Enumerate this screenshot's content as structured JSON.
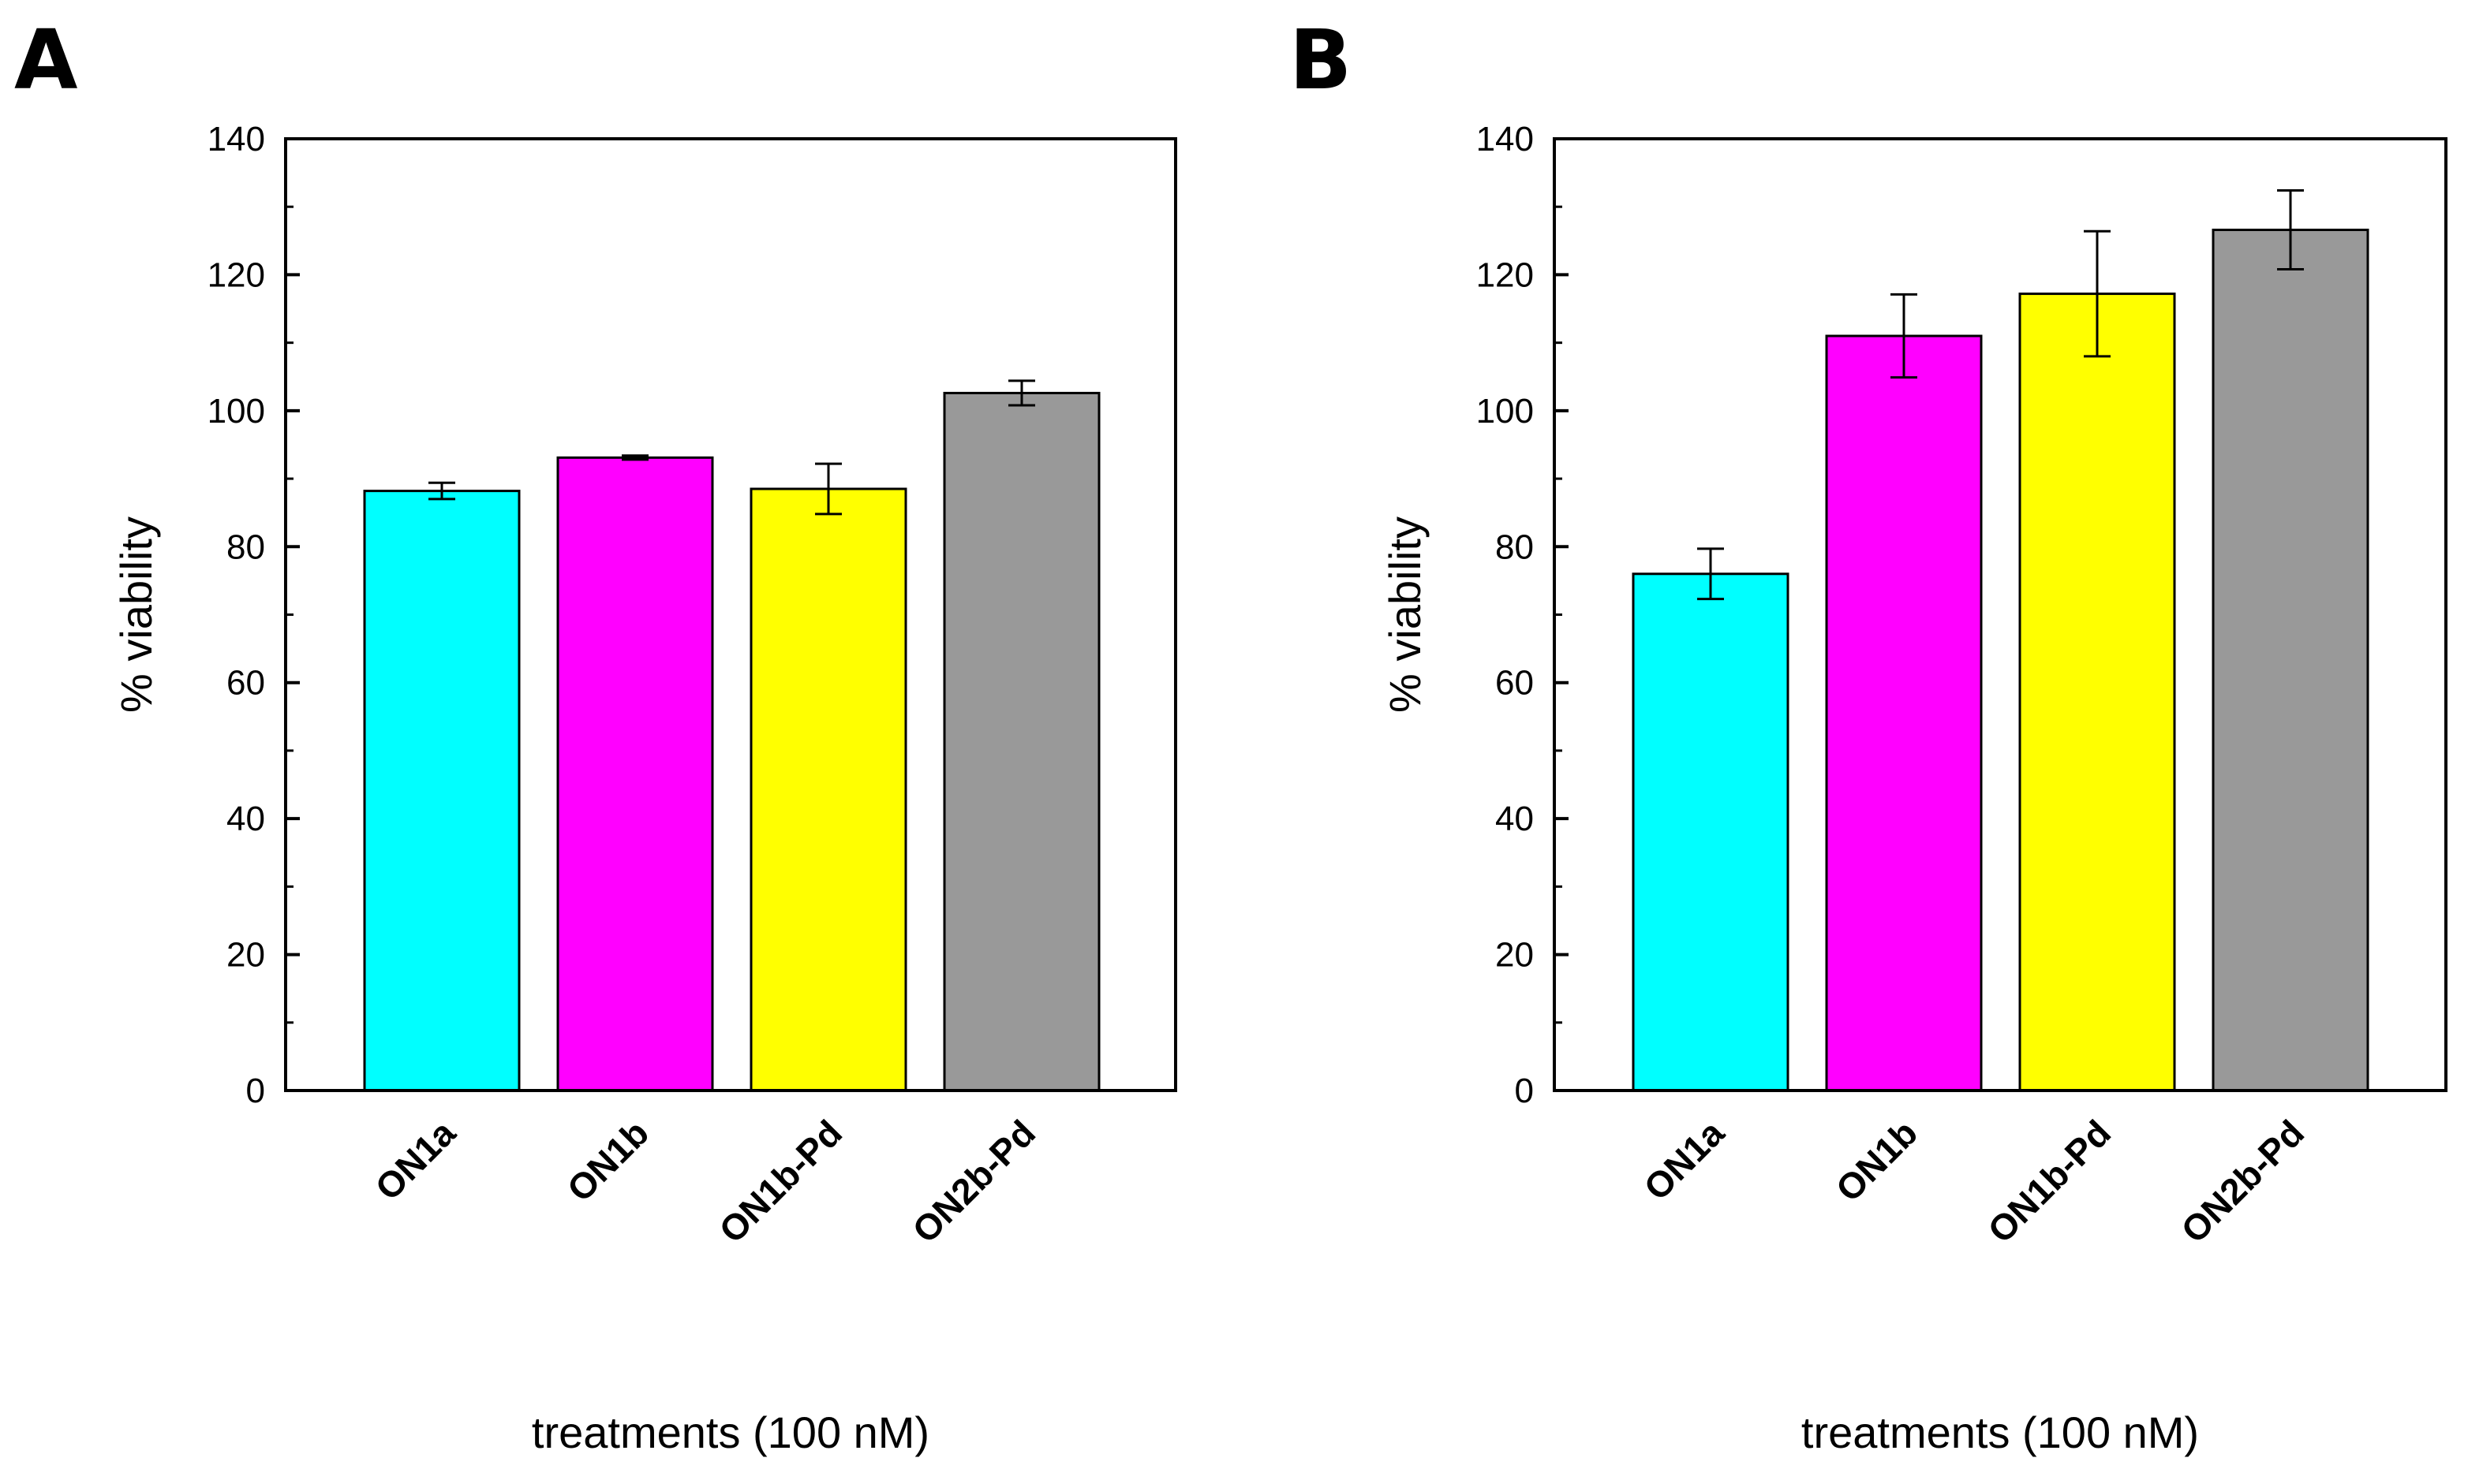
{
  "chart_data": [
    {
      "panel": "A",
      "type": "bar",
      "categories": [
        "ON1a",
        "ON1b",
        "ON1b-Pd",
        "ON2b-Pd"
      ],
      "values": [
        88.2,
        93.1,
        88.5,
        102.6
      ],
      "errors": [
        1.2,
        0.3,
        3.7,
        1.8
      ],
      "colors": [
        "#00ffff",
        "#ff00ff",
        "#ffff00",
        "#999999"
      ],
      "xlabel": "treatments (100 nM)",
      "ylabel": "% viability",
      "ylim": [
        0,
        140
      ],
      "yticks": [
        0,
        20,
        40,
        60,
        80,
        100,
        120,
        140
      ]
    },
    {
      "panel": "B",
      "type": "bar",
      "categories": [
        "ON1a",
        "ON1b",
        "ON1b-Pd",
        "ON2b-Pd"
      ],
      "values": [
        76.0,
        111.0,
        117.2,
        126.6
      ],
      "errors": [
        3.7,
        6.1,
        9.2,
        5.8
      ],
      "colors": [
        "#00ffff",
        "#ff00ff",
        "#ffff00",
        "#999999"
      ],
      "xlabel": "treatments (100 nM)",
      "ylabel": "% viability",
      "ylim": [
        0,
        140
      ],
      "yticks": [
        0,
        20,
        40,
        60,
        80,
        100,
        120,
        140
      ]
    }
  ]
}
